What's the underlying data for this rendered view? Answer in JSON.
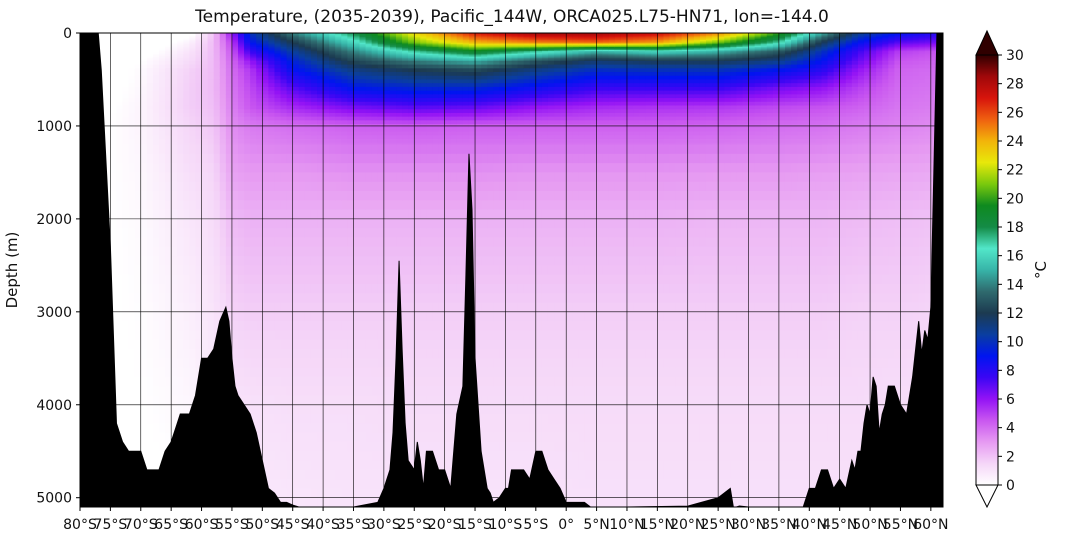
{
  "chart_data": {
    "type": "heatmap",
    "title": "Temperature, (2035-2039), Pacific_144W, ORCA025.L75-HN71, lon=-144.0",
    "ylabel": "Depth (m)",
    "xlabel": "",
    "x_range": [
      -80,
      62
    ],
    "y_range": [
      0,
      5100
    ],
    "y_inverted": true,
    "grid": true,
    "x_ticks": [
      -80,
      -75,
      -70,
      -65,
      -60,
      -55,
      -50,
      -45,
      -40,
      -35,
      -30,
      -25,
      -20,
      -15,
      -10,
      -5,
      0,
      5,
      10,
      15,
      20,
      25,
      30,
      35,
      40,
      45,
      50,
      55,
      60
    ],
    "x_tick_labels": [
      "80°S",
      "75°S",
      "70°S",
      "65°S",
      "60°S",
      "55°S",
      "50°S",
      "45°S",
      "40°S",
      "35°S",
      "30°S",
      "25°S",
      "20°S",
      "15°S",
      "10°S",
      "5°S",
      "0°",
      "5°N",
      "10°N",
      "15°N",
      "20°N",
      "25°N",
      "30°N",
      "35°N",
      "40°N",
      "45°N",
      "50°N",
      "55°N",
      "60°N"
    ],
    "y_ticks": [
      0,
      1000,
      2000,
      3000,
      4000,
      5000
    ],
    "y_tick_labels": [
      "0",
      "1000",
      "2000",
      "3000",
      "4000",
      "5000"
    ],
    "colorbar": {
      "label": "°C",
      "min": 0,
      "max": 30,
      "ticks": [
        0,
        2,
        4,
        6,
        8,
        10,
        12,
        14,
        16,
        18,
        20,
        22,
        24,
        26,
        28,
        30
      ],
      "extend": "both",
      "colors": [
        "#ffffff",
        "#f5d6f8",
        "#e69af2",
        "#c957f0",
        "#9313f5",
        "#3b06f4",
        "#0015f0",
        "#0a3ea0",
        "#1c3a50",
        "#2f6a6e",
        "#37b4a8",
        "#52e6c9",
        "#148b46",
        "#0e8a1f",
        "#7bc90d",
        "#e8e80a",
        "#f2b40a",
        "#ef6010",
        "#d7140c",
        "#a0080a",
        "#300000"
      ]
    },
    "temperature_profiles": {
      "depths": [
        0,
        100,
        200,
        300,
        400,
        600,
        800,
        1000,
        1500,
        2000,
        3000,
        4000,
        5100
      ],
      "profiles": [
        {
          "lat": -80,
          "values": [
            -1.5,
            -1.5,
            -1.5,
            -1.2,
            -1.0,
            -0.8,
            -0.5,
            -0.3,
            -0.2,
            -0.2,
            -0.2,
            -0.2,
            -0.2
          ]
        },
        {
          "lat": -70,
          "values": [
            -1.0,
            -1.0,
            -0.5,
            0.0,
            0.2,
            0.3,
            0.4,
            0.4,
            0.3,
            0.2,
            0.1,
            0.0,
            -0.2
          ]
        },
        {
          "lat": -62,
          "values": [
            -0.5,
            0.5,
            1.0,
            1.3,
            1.6,
            1.7,
            1.7,
            1.5,
            1.2,
            0.9,
            0.6,
            0.3,
            0.0
          ]
        },
        {
          "lat": -58,
          "values": [
            2.0,
            2.2,
            2.2,
            2.2,
            2.2,
            2.2,
            2.1,
            1.9,
            1.5,
            1.3,
            1.0,
            0.7,
            0.4
          ]
        },
        {
          "lat": -55,
          "values": [
            6.0,
            5.0,
            4.5,
            4.2,
            4.0,
            3.8,
            3.6,
            3.3,
            2.8,
            2.2,
            1.6,
            1.0,
            0.7
          ]
        },
        {
          "lat": -52,
          "values": [
            10.0,
            9.0,
            7.5,
            6.0,
            5.2,
            4.8,
            4.5,
            3.7,
            3.0,
            2.4,
            1.7,
            1.1,
            0.8
          ]
        },
        {
          "lat": -45,
          "values": [
            14.0,
            12.0,
            10.5,
            9.5,
            8.8,
            7.0,
            5.5,
            4.0,
            3.0,
            2.4,
            1.7,
            1.2,
            0.9
          ]
        },
        {
          "lat": -35,
          "values": [
            18.0,
            16.0,
            14.0,
            12.5,
            11.0,
            9.0,
            6.5,
            4.3,
            3.2,
            2.4,
            1.7,
            1.2,
            1.0
          ]
        },
        {
          "lat": -25,
          "values": [
            23.0,
            21.0,
            17.0,
            14.0,
            12.0,
            9.5,
            7.0,
            4.4,
            3.2,
            2.4,
            1.7,
            1.3,
            1.0
          ]
        },
        {
          "lat": -15,
          "values": [
            27.0,
            24.0,
            19.0,
            15.0,
            12.5,
            9.5,
            6.8,
            4.3,
            3.2,
            2.4,
            1.7,
            1.3,
            1.0
          ]
        },
        {
          "lat": -5,
          "values": [
            28.5,
            25.0,
            17.0,
            13.0,
            11.0,
            8.5,
            6.0,
            4.3,
            3.1,
            2.4,
            1.7,
            1.3,
            1.0
          ]
        },
        {
          "lat": 5,
          "values": [
            28.5,
            25.5,
            15.0,
            11.5,
            9.8,
            7.5,
            5.5,
            4.3,
            3.1,
            2.4,
            1.7,
            1.3,
            1.1
          ]
        },
        {
          "lat": 15,
          "values": [
            27.5,
            24.5,
            16.0,
            12.0,
            10.0,
            7.5,
            5.3,
            4.3,
            3.1,
            2.4,
            1.7,
            1.3,
            1.1
          ]
        },
        {
          "lat": 25,
          "values": [
            25.0,
            21.0,
            15.0,
            12.0,
            10.0,
            7.5,
            5.2,
            4.2,
            3.0,
            2.3,
            1.7,
            1.3,
            1.1
          ]
        },
        {
          "lat": 35,
          "values": [
            20.0,
            17.0,
            13.0,
            11.0,
            9.0,
            6.5,
            4.8,
            4.0,
            3.0,
            2.3,
            1.7,
            1.3,
            1.1
          ]
        },
        {
          "lat": 42,
          "values": [
            15.0,
            12.0,
            10.0,
            9.0,
            8.0,
            6.0,
            4.6,
            3.9,
            2.9,
            2.3,
            1.7,
            1.3,
            1.1
          ]
        },
        {
          "lat": 48,
          "values": [
            11.0,
            9.0,
            7.5,
            6.8,
            6.0,
            5.0,
            4.3,
            3.7,
            2.8,
            2.2,
            1.6,
            1.3,
            1.1
          ]
        },
        {
          "lat": 55,
          "values": [
            9.0,
            7.0,
            5.0,
            4.5,
            4.2,
            4.0,
            3.8,
            3.5,
            2.7,
            2.1,
            1.6,
            1.2,
            1.0
          ]
        },
        {
          "lat": 62,
          "values": [
            8.0,
            6.5,
            4.5,
            4.2,
            4.0,
            3.8,
            3.6,
            3.3,
            2.6,
            2.0,
            1.5,
            1.2,
            1.0
          ]
        }
      ]
    },
    "bathymetry": {
      "lat": [
        -80,
        -77,
        -76.5,
        -75,
        -74,
        -73,
        -72,
        -71,
        -70,
        -69,
        -68,
        -67,
        -66,
        -65,
        -64,
        -63.5,
        -63,
        -62,
        -61,
        -60,
        -59,
        -58,
        -57,
        -56,
        -55.5,
        -55,
        -54.5,
        -54,
        -53,
        -52,
        -51,
        -50,
        -49,
        -48,
        -47,
        -46,
        -45,
        -44,
        -40,
        -35,
        -31,
        -30,
        -29,
        -28.5,
        -28,
        -27.5,
        -27,
        -26.5,
        -26,
        -25,
        -24.5,
        -24,
        -23.5,
        -23,
        -22,
        -21,
        -20,
        -19,
        -18,
        -17,
        -16.5,
        -16,
        -15.5,
        -15,
        -14.5,
        -14,
        -13.5,
        -13,
        -12.5,
        -12,
        -11,
        -10,
        -9.5,
        -9,
        -8,
        -7,
        -6,
        -5,
        -4,
        -3,
        -2,
        -1,
        0,
        1,
        2,
        3,
        4,
        5,
        6,
        10,
        20,
        25,
        27,
        27.5,
        28,
        28.5,
        30,
        35,
        39,
        40,
        41,
        42,
        43,
        44,
        45,
        46,
        47,
        47.5,
        48,
        48.5,
        49,
        49.5,
        50,
        50.5,
        51,
        51.5,
        52,
        52.5,
        53,
        54,
        55,
        56,
        57,
        57.5,
        58,
        58.5,
        59,
        59.5,
        60,
        61,
        62
      ],
      "depth": [
        0,
        0,
        400,
        2300,
        4200,
        4400,
        4500,
        4500,
        4500,
        4700,
        4700,
        4700,
        4500,
        4400,
        4200,
        4100,
        4100,
        4100,
        3900,
        3500,
        3500,
        3400,
        3100,
        2950,
        3100,
        3500,
        3800,
        3900,
        4000,
        4100,
        4300,
        4600,
        4900,
        4950,
        5050,
        5050,
        5080,
        5100,
        5100,
        5100,
        5050,
        4900,
        4700,
        4300,
        3500,
        2450,
        3400,
        4200,
        4600,
        4700,
        4400,
        4600,
        4900,
        4500,
        4500,
        4700,
        4700,
        4900,
        4100,
        3800,
        2600,
        1300,
        1900,
        3500,
        4000,
        4500,
        4700,
        4900,
        4950,
        5050,
        5000,
        4900,
        4900,
        4700,
        4700,
        4700,
        4800,
        4500,
        4500,
        4700,
        4800,
        4900,
        5050,
        5050,
        5050,
        5050,
        5100,
        5100,
        5100,
        5100,
        5090,
        5000,
        4900,
        5100,
        5100,
        5090,
        5100,
        5100,
        5100,
        4900,
        4900,
        4700,
        4700,
        4900,
        4800,
        4900,
        4600,
        4700,
        4500,
        4500,
        4200,
        4000,
        4100,
        3700,
        3800,
        4300,
        4100,
        4000,
        3800,
        3800,
        4000,
        4100,
        3700,
        3400,
        3100,
        3450,
        3200,
        3300,
        2950,
        0,
        0
      ]
    }
  }
}
